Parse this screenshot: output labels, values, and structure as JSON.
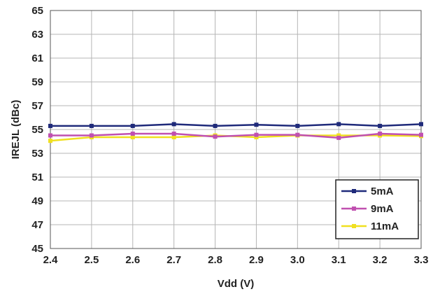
{
  "chart_data": {
    "type": "line",
    "xlabel": "Vdd (V)",
    "ylabel": "IREJL (dBc)",
    "x": [
      2.4,
      2.5,
      2.6,
      2.7,
      2.8,
      2.9,
      3.0,
      3.1,
      3.2,
      3.3
    ],
    "x_tick_labels": [
      "2.4",
      "2.5",
      "2.6",
      "2.7",
      "2.8",
      "2.9",
      "3.0",
      "3.1",
      "3.2",
      "3.3"
    ],
    "y_tick_labels": [
      "45",
      "47",
      "49",
      "51",
      "53",
      "55",
      "57",
      "59",
      "61",
      "63",
      "65"
    ],
    "xlim": [
      2.4,
      3.3
    ],
    "ylim": [
      45,
      65
    ],
    "grid": true,
    "legend_position": "bottom-right",
    "series": [
      {
        "name": "5mA",
        "color": "#1f2a7a",
        "values": [
          55.3,
          55.3,
          55.3,
          55.45,
          55.3,
          55.4,
          55.3,
          55.45,
          55.3,
          55.45
        ]
      },
      {
        "name": "9mA",
        "color": "#c050b0",
        "values": [
          54.5,
          54.5,
          54.65,
          54.65,
          54.4,
          54.55,
          54.55,
          54.3,
          54.65,
          54.55
        ]
      },
      {
        "name": "11mA",
        "color": "#f0e020",
        "values": [
          54.05,
          54.35,
          54.35,
          54.35,
          54.5,
          54.35,
          54.5,
          54.5,
          54.5,
          54.45
        ]
      }
    ]
  }
}
